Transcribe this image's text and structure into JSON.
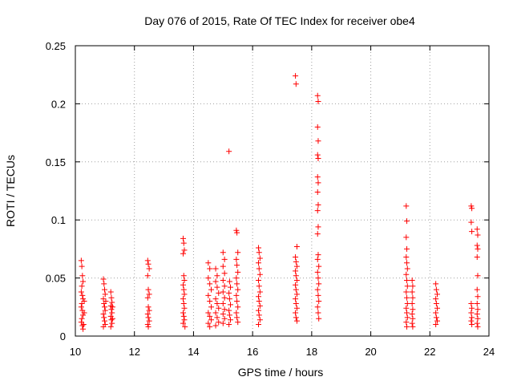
{
  "chart_data": {
    "type": "scatter",
    "title": "Day 076 of 2015, Rate Of TEC Index for receiver obe4",
    "xlabel": "GPS time / hours",
    "ylabel": "ROTI / TECUs",
    "xlim": [
      10,
      24
    ],
    "ylim": [
      0,
      0.25
    ],
    "x_ticks": [
      10,
      12,
      14,
      16,
      18,
      20,
      22,
      24
    ],
    "x_tick_labels": [
      "10",
      "12",
      "14",
      "16",
      "18",
      "20",
      "22",
      "24"
    ],
    "y_ticks": [
      0,
      0.05,
      0.1,
      0.15,
      0.2,
      0.25
    ],
    "y_tick_labels": [
      "0",
      "0.05",
      "0.1",
      "0.15",
      "0.2",
      "0.25"
    ],
    "grid": true,
    "marker": "+",
    "series": [
      {
        "name": "obe4",
        "color": "#ff0000",
        "points": [
          [
            10.2,
            0.065
          ],
          [
            10.22,
            0.06
          ],
          [
            10.24,
            0.052
          ],
          [
            10.26,
            0.047
          ],
          [
            10.22,
            0.043
          ],
          [
            10.2,
            0.038
          ],
          [
            10.24,
            0.035
          ],
          [
            10.26,
            0.032
          ],
          [
            10.22,
            0.028
          ],
          [
            10.2,
            0.025
          ],
          [
            10.24,
            0.022
          ],
          [
            10.26,
            0.018
          ],
          [
            10.22,
            0.015
          ],
          [
            10.2,
            0.012
          ],
          [
            10.24,
            0.009
          ],
          [
            10.26,
            0.006
          ],
          [
            10.3,
            0.03
          ],
          [
            10.3,
            0.02
          ],
          [
            10.28,
            0.01
          ],
          [
            10.95,
            0.049
          ],
          [
            10.97,
            0.045
          ],
          [
            10.99,
            0.04
          ],
          [
            11.01,
            0.036
          ],
          [
            10.95,
            0.032
          ],
          [
            10.97,
            0.028
          ],
          [
            10.99,
            0.025
          ],
          [
            11.01,
            0.022
          ],
          [
            10.95,
            0.019
          ],
          [
            10.97,
            0.016
          ],
          [
            10.99,
            0.013
          ],
          [
            11.01,
            0.01
          ],
          [
            10.95,
            0.008
          ],
          [
            11.03,
            0.03
          ],
          [
            11.2,
            0.038
          ],
          [
            11.22,
            0.033
          ],
          [
            11.24,
            0.029
          ],
          [
            11.2,
            0.026
          ],
          [
            11.22,
            0.023
          ],
          [
            11.24,
            0.02
          ],
          [
            11.2,
            0.017
          ],
          [
            11.22,
            0.014
          ],
          [
            11.24,
            0.011
          ],
          [
            11.2,
            0.008
          ],
          [
            11.26,
            0.025
          ],
          [
            11.26,
            0.015
          ],
          [
            12.45,
            0.065
          ],
          [
            12.47,
            0.062
          ],
          [
            12.5,
            0.058
          ],
          [
            12.45,
            0.052
          ],
          [
            12.47,
            0.04
          ],
          [
            12.5,
            0.036
          ],
          [
            12.45,
            0.033
          ],
          [
            12.47,
            0.025
          ],
          [
            12.5,
            0.022
          ],
          [
            12.45,
            0.019
          ],
          [
            12.47,
            0.016
          ],
          [
            12.5,
            0.013
          ],
          [
            12.45,
            0.01
          ],
          [
            12.47,
            0.008
          ],
          [
            13.65,
            0.084
          ],
          [
            13.67,
            0.08
          ],
          [
            13.69,
            0.074
          ],
          [
            13.65,
            0.071
          ],
          [
            13.67,
            0.052
          ],
          [
            13.69,
            0.048
          ],
          [
            13.65,
            0.044
          ],
          [
            13.67,
            0.04
          ],
          [
            13.69,
            0.036
          ],
          [
            13.65,
            0.032
          ],
          [
            13.67,
            0.028
          ],
          [
            13.69,
            0.024
          ],
          [
            13.65,
            0.02
          ],
          [
            13.67,
            0.017
          ],
          [
            13.69,
            0.014
          ],
          [
            13.65,
            0.011
          ],
          [
            13.71,
            0.008
          ],
          [
            14.5,
            0.063
          ],
          [
            14.55,
            0.058
          ],
          [
            14.5,
            0.05
          ],
          [
            14.55,
            0.045
          ],
          [
            14.6,
            0.04
          ],
          [
            14.5,
            0.035
          ],
          [
            14.55,
            0.03
          ],
          [
            14.6,
            0.025
          ],
          [
            14.5,
            0.02
          ],
          [
            14.55,
            0.017
          ],
          [
            14.6,
            0.014
          ],
          [
            14.5,
            0.011
          ],
          [
            14.55,
            0.008
          ],
          [
            14.75,
            0.058
          ],
          [
            14.8,
            0.052
          ],
          [
            14.75,
            0.047
          ],
          [
            14.8,
            0.042
          ],
          [
            14.85,
            0.037
          ],
          [
            14.75,
            0.032
          ],
          [
            14.8,
            0.028
          ],
          [
            14.85,
            0.024
          ],
          [
            14.75,
            0.02
          ],
          [
            14.8,
            0.016
          ],
          [
            14.85,
            0.012
          ],
          [
            14.75,
            0.009
          ],
          [
            15.0,
            0.072
          ],
          [
            15.05,
            0.066
          ],
          [
            15.0,
            0.06
          ],
          [
            15.05,
            0.054
          ],
          [
            15.0,
            0.048
          ],
          [
            15.05,
            0.043
          ],
          [
            15.0,
            0.038
          ],
          [
            15.05,
            0.033
          ],
          [
            15.0,
            0.028
          ],
          [
            15.05,
            0.023
          ],
          [
            15.0,
            0.019
          ],
          [
            15.05,
            0.015
          ],
          [
            15.0,
            0.011
          ],
          [
            15.2,
            0.159
          ],
          [
            15.22,
            0.047
          ],
          [
            15.25,
            0.042
          ],
          [
            15.2,
            0.037
          ],
          [
            15.22,
            0.032
          ],
          [
            15.25,
            0.027
          ],
          [
            15.2,
            0.022
          ],
          [
            15.22,
            0.018
          ],
          [
            15.25,
            0.014
          ],
          [
            15.2,
            0.01
          ],
          [
            15.45,
            0.091
          ],
          [
            15.47,
            0.089
          ],
          [
            15.5,
            0.072
          ],
          [
            15.45,
            0.066
          ],
          [
            15.47,
            0.061
          ],
          [
            15.5,
            0.055
          ],
          [
            15.45,
            0.05
          ],
          [
            15.47,
            0.045
          ],
          [
            15.5,
            0.04
          ],
          [
            15.45,
            0.035
          ],
          [
            15.47,
            0.03
          ],
          [
            15.5,
            0.025
          ],
          [
            15.45,
            0.02
          ],
          [
            15.47,
            0.016
          ],
          [
            15.5,
            0.012
          ],
          [
            16.2,
            0.076
          ],
          [
            16.22,
            0.072
          ],
          [
            16.25,
            0.067
          ],
          [
            16.2,
            0.063
          ],
          [
            16.22,
            0.058
          ],
          [
            16.25,
            0.053
          ],
          [
            16.2,
            0.048
          ],
          [
            16.22,
            0.043
          ],
          [
            16.25,
            0.038
          ],
          [
            16.2,
            0.034
          ],
          [
            16.22,
            0.03
          ],
          [
            16.25,
            0.026
          ],
          [
            16.2,
            0.022
          ],
          [
            16.22,
            0.018
          ],
          [
            16.25,
            0.014
          ],
          [
            16.2,
            0.01
          ],
          [
            17.45,
            0.224
          ],
          [
            17.47,
            0.217
          ],
          [
            17.5,
            0.077
          ],
          [
            17.45,
            0.068
          ],
          [
            17.47,
            0.064
          ],
          [
            17.5,
            0.06
          ],
          [
            17.45,
            0.056
          ],
          [
            17.47,
            0.052
          ],
          [
            17.5,
            0.048
          ],
          [
            17.45,
            0.044
          ],
          [
            17.47,
            0.04
          ],
          [
            17.5,
            0.036
          ],
          [
            17.45,
            0.032
          ],
          [
            17.47,
            0.028
          ],
          [
            17.5,
            0.024
          ],
          [
            17.45,
            0.02
          ],
          [
            17.47,
            0.016
          ],
          [
            17.5,
            0.013
          ],
          [
            18.2,
            0.207
          ],
          [
            18.22,
            0.202
          ],
          [
            18.2,
            0.18
          ],
          [
            18.22,
            0.168
          ],
          [
            18.2,
            0.156
          ],
          [
            18.22,
            0.153
          ],
          [
            18.2,
            0.137
          ],
          [
            18.22,
            0.132
          ],
          [
            18.2,
            0.124
          ],
          [
            18.22,
            0.113
          ],
          [
            18.2,
            0.108
          ],
          [
            18.22,
            0.094
          ],
          [
            18.2,
            0.088
          ],
          [
            18.22,
            0.07
          ],
          [
            18.2,
            0.066
          ],
          [
            18.24,
            0.06
          ],
          [
            18.2,
            0.055
          ],
          [
            18.22,
            0.05
          ],
          [
            18.24,
            0.045
          ],
          [
            18.2,
            0.04
          ],
          [
            18.22,
            0.035
          ],
          [
            18.24,
            0.03
          ],
          [
            18.2,
            0.025
          ],
          [
            18.22,
            0.02
          ],
          [
            18.24,
            0.015
          ],
          [
            21.2,
            0.112
          ],
          [
            21.22,
            0.099
          ],
          [
            21.2,
            0.085
          ],
          [
            21.22,
            0.075
          ],
          [
            21.2,
            0.068
          ],
          [
            21.22,
            0.063
          ],
          [
            21.24,
            0.058
          ],
          [
            21.2,
            0.053
          ],
          [
            21.22,
            0.048
          ],
          [
            21.24,
            0.043
          ],
          [
            21.2,
            0.038
          ],
          [
            21.22,
            0.033
          ],
          [
            21.24,
            0.028
          ],
          [
            21.2,
            0.024
          ],
          [
            21.22,
            0.02
          ],
          [
            21.24,
            0.016
          ],
          [
            21.2,
            0.012
          ],
          [
            21.22,
            0.008
          ],
          [
            21.4,
            0.048
          ],
          [
            21.42,
            0.043
          ],
          [
            21.4,
            0.038
          ],
          [
            21.42,
            0.033
          ],
          [
            21.4,
            0.028
          ],
          [
            21.42,
            0.023
          ],
          [
            21.4,
            0.019
          ],
          [
            21.42,
            0.015
          ],
          [
            21.4,
            0.011
          ],
          [
            21.42,
            0.008
          ],
          [
            22.2,
            0.045
          ],
          [
            22.22,
            0.04
          ],
          [
            22.25,
            0.036
          ],
          [
            22.2,
            0.032
          ],
          [
            22.22,
            0.028
          ],
          [
            22.25,
            0.024
          ],
          [
            22.2,
            0.02
          ],
          [
            22.22,
            0.016
          ],
          [
            22.25,
            0.013
          ],
          [
            22.2,
            0.01
          ],
          [
            23.4,
            0.112
          ],
          [
            23.42,
            0.11
          ],
          [
            23.4,
            0.098
          ],
          [
            23.42,
            0.09
          ],
          [
            23.4,
            0.028
          ],
          [
            23.42,
            0.024
          ],
          [
            23.4,
            0.02
          ],
          [
            23.42,
            0.016
          ],
          [
            23.4,
            0.013
          ],
          [
            23.42,
            0.01
          ],
          [
            23.6,
            0.092
          ],
          [
            23.62,
            0.087
          ],
          [
            23.6,
            0.078
          ],
          [
            23.62,
            0.075
          ],
          [
            23.6,
            0.068
          ],
          [
            23.62,
            0.052
          ],
          [
            23.6,
            0.04
          ],
          [
            23.62,
            0.034
          ],
          [
            23.6,
            0.028
          ],
          [
            23.62,
            0.023
          ],
          [
            23.6,
            0.019
          ],
          [
            23.62,
            0.015
          ],
          [
            23.6,
            0.011
          ],
          [
            23.62,
            0.008
          ]
        ]
      }
    ]
  }
}
